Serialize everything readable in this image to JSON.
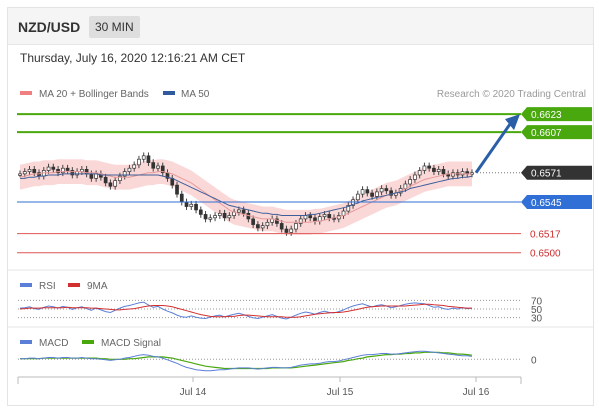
{
  "header": {
    "pair": "NZD/USD",
    "timeframe": "30 MIN"
  },
  "timestamp": "Thursday, July 16, 2020 12:16:21 AM CET",
  "credit": "Research © 2020 Trading Central",
  "colors": {
    "target": "#4aa80f",
    "support": "#2f6fd6",
    "stop": "#e05555",
    "arrow": "#2a5fa8",
    "price_tag": "#333333",
    "ma50": "#3e5f9a",
    "bands": "#f8b8b8",
    "rsi": "#5b7fd6",
    "rsi_ma": "#d22f2f",
    "macd": "#5b7fd6",
    "macd_signal": "#4aa80f"
  },
  "chart_data": [
    {
      "type": "candlestick",
      "title": "",
      "legend": [
        {
          "name": "MA 20 + Bollinger Bands",
          "color": "#f08080"
        },
        {
          "name": "MA 50",
          "color": "#2f5a9e"
        }
      ],
      "x_ticks": [
        "Jul 14",
        "Jul 15",
        "Jul 16"
      ],
      "ylim": [
        0.649,
        0.6632
      ],
      "levels": [
        {
          "label": "0.6623",
          "value": 0.6623,
          "kind": "target"
        },
        {
          "label": "0.6607",
          "value": 0.6607,
          "kind": "target"
        },
        {
          "label": "0.6571",
          "value": 0.6571,
          "kind": "price"
        },
        {
          "label": "0.6545",
          "value": 0.6545,
          "kind": "support"
        },
        {
          "label": "0.6517",
          "value": 0.6517,
          "kind": "stop"
        },
        {
          "label": "0.6500",
          "value": 0.65,
          "kind": "stop"
        }
      ],
      "close": [
        0.657,
        0.6572,
        0.6574,
        0.6571,
        0.6568,
        0.6573,
        0.6576,
        0.6574,
        0.6571,
        0.6575,
        0.6573,
        0.6569,
        0.6572,
        0.6574,
        0.657,
        0.6566,
        0.657,
        0.6567,
        0.6562,
        0.6559,
        0.6564,
        0.6568,
        0.6572,
        0.6575,
        0.6578,
        0.6583,
        0.6586,
        0.658,
        0.6575,
        0.6577,
        0.6571,
        0.6566,
        0.656,
        0.6552,
        0.6545,
        0.6541,
        0.6543,
        0.6538,
        0.6534,
        0.653,
        0.6531,
        0.6533,
        0.6535,
        0.6531,
        0.6533,
        0.6536,
        0.6538,
        0.6535,
        0.653,
        0.6525,
        0.6522,
        0.6524,
        0.6527,
        0.653,
        0.6526,
        0.6521,
        0.6518,
        0.6521,
        0.6526,
        0.653,
        0.6533,
        0.6531,
        0.6528,
        0.6532,
        0.6534,
        0.6531,
        0.653,
        0.6533,
        0.6537,
        0.6542,
        0.6547,
        0.6552,
        0.6556,
        0.6553,
        0.655,
        0.6554,
        0.6557,
        0.6555,
        0.6551,
        0.6553,
        0.6557,
        0.6561,
        0.6565,
        0.6569,
        0.6573,
        0.6577,
        0.6575,
        0.6572,
        0.6574,
        0.657,
        0.6568,
        0.6571,
        0.6569,
        0.6572,
        0.657,
        0.6571
      ],
      "ma20_approx": [
        0.6567,
        0.6568,
        0.6569,
        0.657,
        0.657,
        0.6571,
        0.6571,
        0.6571,
        0.6572,
        0.6572,
        0.6572,
        0.6572,
        0.6572,
        0.6572,
        0.6571,
        0.6571,
        0.6571,
        0.657,
        0.6569,
        0.6568,
        0.6567,
        0.6567,
        0.6567,
        0.6567,
        0.6568,
        0.6569,
        0.657,
        0.6571,
        0.6571,
        0.6572,
        0.6572,
        0.6571,
        0.657,
        0.6568,
        0.6566,
        0.6564,
        0.6562,
        0.6559,
        0.6556,
        0.6553,
        0.655,
        0.6547,
        0.6544,
        0.6541,
        0.6538,
        0.6536,
        0.6535,
        0.6534,
        0.6533,
        0.6532,
        0.6531,
        0.653,
        0.653,
        0.653,
        0.6529,
        0.6528,
        0.6527,
        0.6527,
        0.6527,
        0.6527,
        0.6527,
        0.6527,
        0.6528,
        0.6528,
        0.6529,
        0.653,
        0.6531,
        0.6532,
        0.6533,
        0.6535,
        0.6537,
        0.6539,
        0.6541,
        0.6543,
        0.6545,
        0.6547,
        0.6549,
        0.6551,
        0.6552,
        0.6553,
        0.6555,
        0.6557,
        0.6559,
        0.6561,
        0.6563,
        0.6565,
        0.6566,
        0.6567,
        0.6568,
        0.6569,
        0.657,
        0.657,
        0.657,
        0.657,
        0.657,
        0.657
      ],
      "ma50_approx": [
        0.6566,
        0.6566,
        0.6567,
        0.6567,
        0.6568,
        0.6568,
        0.6569,
        0.6569,
        0.6569,
        0.657,
        0.657,
        0.657,
        0.657,
        0.657,
        0.657,
        0.657,
        0.657,
        0.6569,
        0.6569,
        0.6569,
        0.6569,
        0.6569,
        0.6569,
        0.6569,
        0.6569,
        0.6569,
        0.6569,
        0.6569,
        0.6569,
        0.6569,
        0.6568,
        0.6567,
        0.6566,
        0.6564,
        0.6562,
        0.656,
        0.6558,
        0.6556,
        0.6554,
        0.6552,
        0.655,
        0.6548,
        0.6546,
        0.6544,
        0.6542,
        0.6541,
        0.654,
        0.6539,
        0.6538,
        0.6537,
        0.6536,
        0.6535,
        0.6535,
        0.6534,
        0.6534,
        0.6533,
        0.6533,
        0.6533,
        0.6533,
        0.6533,
        0.6533,
        0.6534,
        0.6534,
        0.6535,
        0.6536,
        0.6537,
        0.6538,
        0.6539,
        0.654,
        0.6541,
        0.6543,
        0.6544,
        0.6546,
        0.6547,
        0.6548,
        0.6549,
        0.655,
        0.6551,
        0.6552,
        0.6553,
        0.6554,
        0.6555,
        0.6557,
        0.6558,
        0.6559,
        0.656,
        0.6561,
        0.6562,
        0.6563,
        0.6564,
        0.6565,
        0.6566,
        0.6566,
        0.6567,
        0.6567,
        0.6568
      ]
    },
    {
      "type": "line",
      "title": "",
      "legend": [
        {
          "name": "RSI",
          "color": "#5b7fd6"
        },
        {
          "name": "9MA",
          "color": "#d22f2f"
        }
      ],
      "y_ticks": [
        "70",
        "50",
        "30"
      ],
      "ylim": [
        20,
        80
      ],
      "rsi_approx": [
        52,
        53,
        55,
        51,
        49,
        54,
        57,
        55,
        52,
        56,
        54,
        49,
        53,
        55,
        51,
        47,
        52,
        48,
        44,
        42,
        47,
        52,
        56,
        58,
        61,
        64,
        66,
        59,
        54,
        56,
        50,
        45,
        41,
        36,
        32,
        31,
        34,
        31,
        29,
        28,
        31,
        34,
        36,
        32,
        35,
        38,
        40,
        37,
        33,
        30,
        28,
        31,
        34,
        37,
        33,
        29,
        27,
        31,
        36,
        40,
        43,
        41,
        38,
        42,
        45,
        42,
        41,
        44,
        48,
        53,
        57,
        60,
        62,
        58,
        55,
        58,
        60,
        57,
        53,
        55,
        58,
        61,
        63,
        64,
        63,
        62,
        58,
        54,
        55,
        51,
        49,
        52,
        50,
        53,
        51,
        52
      ],
      "rsi_ma_approx": [
        50,
        51,
        52,
        52,
        52,
        53,
        53,
        53,
        53,
        53,
        54,
        53,
        53,
        53,
        53,
        52,
        52,
        51,
        50,
        49,
        48,
        48,
        49,
        50,
        51,
        53,
        55,
        57,
        58,
        58,
        58,
        57,
        55,
        52,
        49,
        46,
        43,
        40,
        37,
        35,
        33,
        32,
        32,
        32,
        33,
        33,
        35,
        36,
        36,
        35,
        34,
        33,
        32,
        32,
        32,
        32,
        31,
        31,
        31,
        32,
        34,
        36,
        38,
        39,
        40,
        41,
        42,
        42,
        43,
        45,
        47,
        49,
        52,
        54,
        55,
        56,
        57,
        57,
        57,
        57,
        57,
        57,
        58,
        59,
        60,
        61,
        61,
        60,
        59,
        58,
        56,
        55,
        54,
        53,
        52,
        52
      ]
    },
    {
      "type": "line",
      "title": "",
      "legend": [
        {
          "name": "MACD",
          "color": "#5b7fd6"
        },
        {
          "name": "MACD Signal",
          "color": "#4aa80f"
        }
      ],
      "y_ticks": [
        "0"
      ],
      "ylim": [
        -0.0022,
        0.0016
      ],
      "macd_approx": [
        0.0001,
        0.0001,
        0.0002,
        0.0002,
        0.0001,
        0.0002,
        0.0003,
        0.0003,
        0.0002,
        0.0003,
        0.0003,
        0.0002,
        0.0002,
        0.0003,
        0.0002,
        0.0001,
        0.0001,
        0.0,
        -0.0001,
        -0.0002,
        -0.0001,
        0.0,
        0.0002,
        0.0003,
        0.0005,
        0.0007,
        0.0008,
        0.0007,
        0.0005,
        0.0004,
        0.0002,
        -0.0001,
        -0.0004,
        -0.0007,
        -0.0011,
        -0.0014,
        -0.0016,
        -0.0018,
        -0.0019,
        -0.002,
        -0.002,
        -0.0019,
        -0.0018,
        -0.0018,
        -0.0017,
        -0.0016,
        -0.0015,
        -0.0015,
        -0.0015,
        -0.0016,
        -0.0017,
        -0.0016,
        -0.0015,
        -0.0014,
        -0.0014,
        -0.0015,
        -0.0015,
        -0.0014,
        -0.0012,
        -0.001,
        -0.0009,
        -0.0008,
        -0.0008,
        -0.0007,
        -0.0005,
        -0.0004,
        -0.0004,
        -0.0003,
        -0.0001,
        0.0001,
        0.0003,
        0.0005,
        0.0007,
        0.0008,
        0.0008,
        0.0009,
        0.001,
        0.001,
        0.0009,
        0.0009,
        0.001,
        0.0011,
        0.0012,
        0.0013,
        0.0014,
        0.0014,
        0.0013,
        0.0012,
        0.0011,
        0.001,
        0.0009,
        0.0008,
        0.0007,
        0.0006,
        0.0006,
        0.0005
      ],
      "signal_approx": [
        0.0001,
        0.0001,
        0.0001,
        0.0001,
        0.0001,
        0.0002,
        0.0002,
        0.0002,
        0.0002,
        0.0002,
        0.0002,
        0.0002,
        0.0002,
        0.0002,
        0.0002,
        0.0002,
        0.0002,
        0.0001,
        0.0001,
        0.0,
        0.0,
        0.0,
        0.0,
        0.0001,
        0.0001,
        0.0002,
        0.0003,
        0.0004,
        0.0004,
        0.0004,
        0.0004,
        0.0003,
        0.0002,
        0.0,
        -0.0002,
        -0.0004,
        -0.0006,
        -0.0008,
        -0.001,
        -0.0012,
        -0.0013,
        -0.0014,
        -0.0015,
        -0.0016,
        -0.0016,
        -0.0016,
        -0.0016,
        -0.0016,
        -0.0016,
        -0.0016,
        -0.0016,
        -0.0016,
        -0.0016,
        -0.0015,
        -0.0015,
        -0.0015,
        -0.0015,
        -0.0015,
        -0.0014,
        -0.0013,
        -0.0012,
        -0.0011,
        -0.001,
        -0.0009,
        -0.0008,
        -0.0007,
        -0.0006,
        -0.0005,
        -0.0004,
        -0.0002,
        -0.0001,
        0.0001,
        0.0002,
        0.0004,
        0.0005,
        0.0006,
        0.0007,
        0.0008,
        0.0008,
        0.0009,
        0.0009,
        0.001,
        0.001,
        0.0011,
        0.0011,
        0.0012,
        0.0012,
        0.0012,
        0.0012,
        0.0011,
        0.0011,
        0.001,
        0.0009,
        0.0009,
        0.0008,
        0.0007
      ]
    }
  ]
}
